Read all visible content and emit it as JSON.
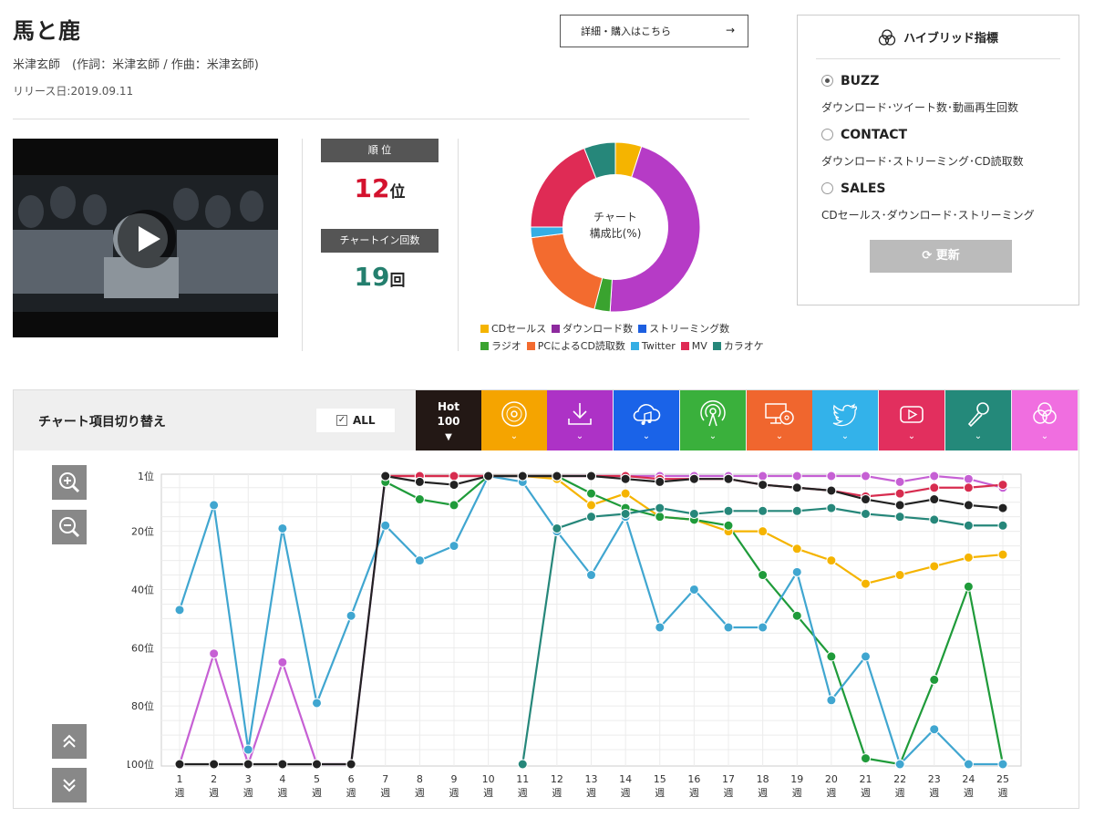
{
  "song": {
    "title": "馬と鹿",
    "artist_line": "米津玄師　(作詞：米津玄師 / 作曲：米津玄師)",
    "release": "リリース日:2019.09.11"
  },
  "buy_button": {
    "label": "詳細・購入はこちら",
    "arrow": "→"
  },
  "rank": {
    "label": "順 位",
    "value": "12",
    "unit": "位"
  },
  "chart_in": {
    "label": "チャートイン回数",
    "value": "19",
    "unit": "回"
  },
  "donut": {
    "center_line1": "チャート",
    "center_line2": "構成比(%)",
    "slices": [
      {
        "name": "CDセールス",
        "value": 5,
        "color": "#f5b400"
      },
      {
        "name": "ダウンロード数",
        "value": 46,
        "color": "#b63bc6"
      },
      {
        "name": "ラジオ",
        "value": 3,
        "color": "#3aa32f"
      },
      {
        "name": "PCによるCD読取数",
        "value": 19,
        "color": "#f36b2f"
      },
      {
        "name": "Twitter",
        "value": 2,
        "color": "#35aee4"
      },
      {
        "name": "MV",
        "value": 19,
        "color": "#df2b55"
      },
      {
        "name": "カラオケ",
        "value": 6,
        "color": "#26877a"
      }
    ]
  },
  "legend": [
    {
      "name": "CDセールス",
      "color": "#f5b400"
    },
    {
      "name": "ダウンロード数",
      "color": "#8d2a9e"
    },
    {
      "name": "ストリーミング数",
      "color": "#1d5fe0"
    },
    {
      "name": "ラジオ",
      "color": "#3aa32f"
    },
    {
      "name": "PCによるCD読取数",
      "color": "#f36b2f"
    },
    {
      "name": "Twitter",
      "color": "#35aee4"
    },
    {
      "name": "MV",
      "color": "#df2b55"
    },
    {
      "name": "カラオケ",
      "color": "#26877a"
    }
  ],
  "hybrid": {
    "title": "ハイブリッド指標",
    "options": [
      {
        "label": "BUZZ",
        "desc": "ダウンロード･ツイート数･動画再生回数",
        "selected": true
      },
      {
        "label": "CONTACT",
        "desc": "ダウンロード･ストリーミング･CD読取数",
        "selected": false
      },
      {
        "label": "SALES",
        "desc": "CDセールス･ダウンロード･ストリーミング",
        "selected": false
      }
    ],
    "update_label": "更新"
  },
  "switcher": {
    "label": "チャート項目切り替え",
    "all_label": "ALL",
    "tabs": [
      {
        "name": "hot100",
        "text1": "Hot",
        "text2": "100",
        "color": "#231815"
      },
      {
        "name": "cd-sales",
        "color": "#f5a400"
      },
      {
        "name": "download",
        "color": "#ad32c6"
      },
      {
        "name": "streaming",
        "color": "#1a63e8"
      },
      {
        "name": "radio",
        "color": "#3ab03c"
      },
      {
        "name": "pc-cd",
        "color": "#f0662e"
      },
      {
        "name": "twitter",
        "color": "#33b2ea"
      },
      {
        "name": "mv",
        "color": "#e22f5e"
      },
      {
        "name": "karaoke",
        "color": "#24897a"
      },
      {
        "name": "hybrid",
        "color": "#f06ee0"
      }
    ]
  },
  "chart_data": {
    "type": "line",
    "y_reversed": true,
    "ylim": [
      1,
      100
    ],
    "y_ticks": [
      {
        "v": 1,
        "label": "1位"
      },
      {
        "v": 20,
        "label": "20位"
      },
      {
        "v": 40,
        "label": "40位"
      },
      {
        "v": 60,
        "label": "60位"
      },
      {
        "v": 80,
        "label": "80位"
      },
      {
        "v": 100,
        "label": "100位"
      }
    ],
    "x": [
      1,
      2,
      3,
      4,
      5,
      6,
      7,
      8,
      9,
      10,
      11,
      12,
      13,
      14,
      15,
      16,
      17,
      18,
      19,
      20,
      21,
      22,
      23,
      24,
      25
    ],
    "x_unit": "週",
    "grid": true,
    "series": [
      {
        "name": "CDセールス",
        "color": "#f5b400",
        "values": [
          null,
          null,
          null,
          null,
          null,
          null,
          1,
          1,
          1,
          1,
          1,
          2,
          11,
          7,
          15,
          16,
          20,
          20,
          26,
          30,
          38,
          35,
          32,
          29,
          28
        ]
      },
      {
        "name": "ダウンロード数",
        "color": "#c660d4",
        "values": [
          100,
          62,
          100,
          65,
          100,
          100,
          1,
          1,
          1,
          1,
          1,
          1,
          1,
          1,
          1,
          1,
          1,
          1,
          1,
          1,
          1,
          3,
          1,
          2,
          5
        ]
      },
      {
        "name": "ラジオ",
        "color": "#1f9b3a",
        "values": [
          null,
          null,
          null,
          null,
          null,
          null,
          3,
          9,
          11,
          1,
          1,
          1,
          7,
          12,
          15,
          16,
          18,
          35,
          49,
          63,
          98,
          100,
          71,
          39,
          100
        ]
      },
      {
        "name": "Twitter",
        "color": "#40a6d0",
        "values": [
          47,
          11,
          95,
          19,
          79,
          49,
          18,
          30,
          25,
          1,
          3,
          20,
          35,
          15,
          53,
          40,
          53,
          53,
          34,
          78,
          63,
          100,
          88,
          100,
          100
        ]
      },
      {
        "name": "MV",
        "color": "#d72c4f",
        "values": [
          null,
          null,
          null,
          null,
          null,
          null,
          1,
          1,
          1,
          1,
          1,
          1,
          1,
          1,
          2,
          2,
          2,
          4,
          5,
          6,
          8,
          7,
          5,
          5,
          4
        ]
      },
      {
        "name": "カラオケ",
        "color": "#26877a",
        "values": [
          null,
          null,
          null,
          null,
          null,
          null,
          null,
          null,
          null,
          null,
          100,
          19,
          15,
          14,
          12,
          14,
          13,
          13,
          13,
          12,
          14,
          15,
          16,
          18,
          18
        ]
      },
      {
        "name": "Hot 100",
        "color": "#222222",
        "values": [
          100,
          100,
          100,
          100,
          100,
          100,
          1,
          3,
          4,
          1,
          1,
          1,
          1,
          2,
          3,
          2,
          2,
          4,
          5,
          6,
          9,
          11,
          9,
          11,
          12
        ]
      }
    ]
  }
}
